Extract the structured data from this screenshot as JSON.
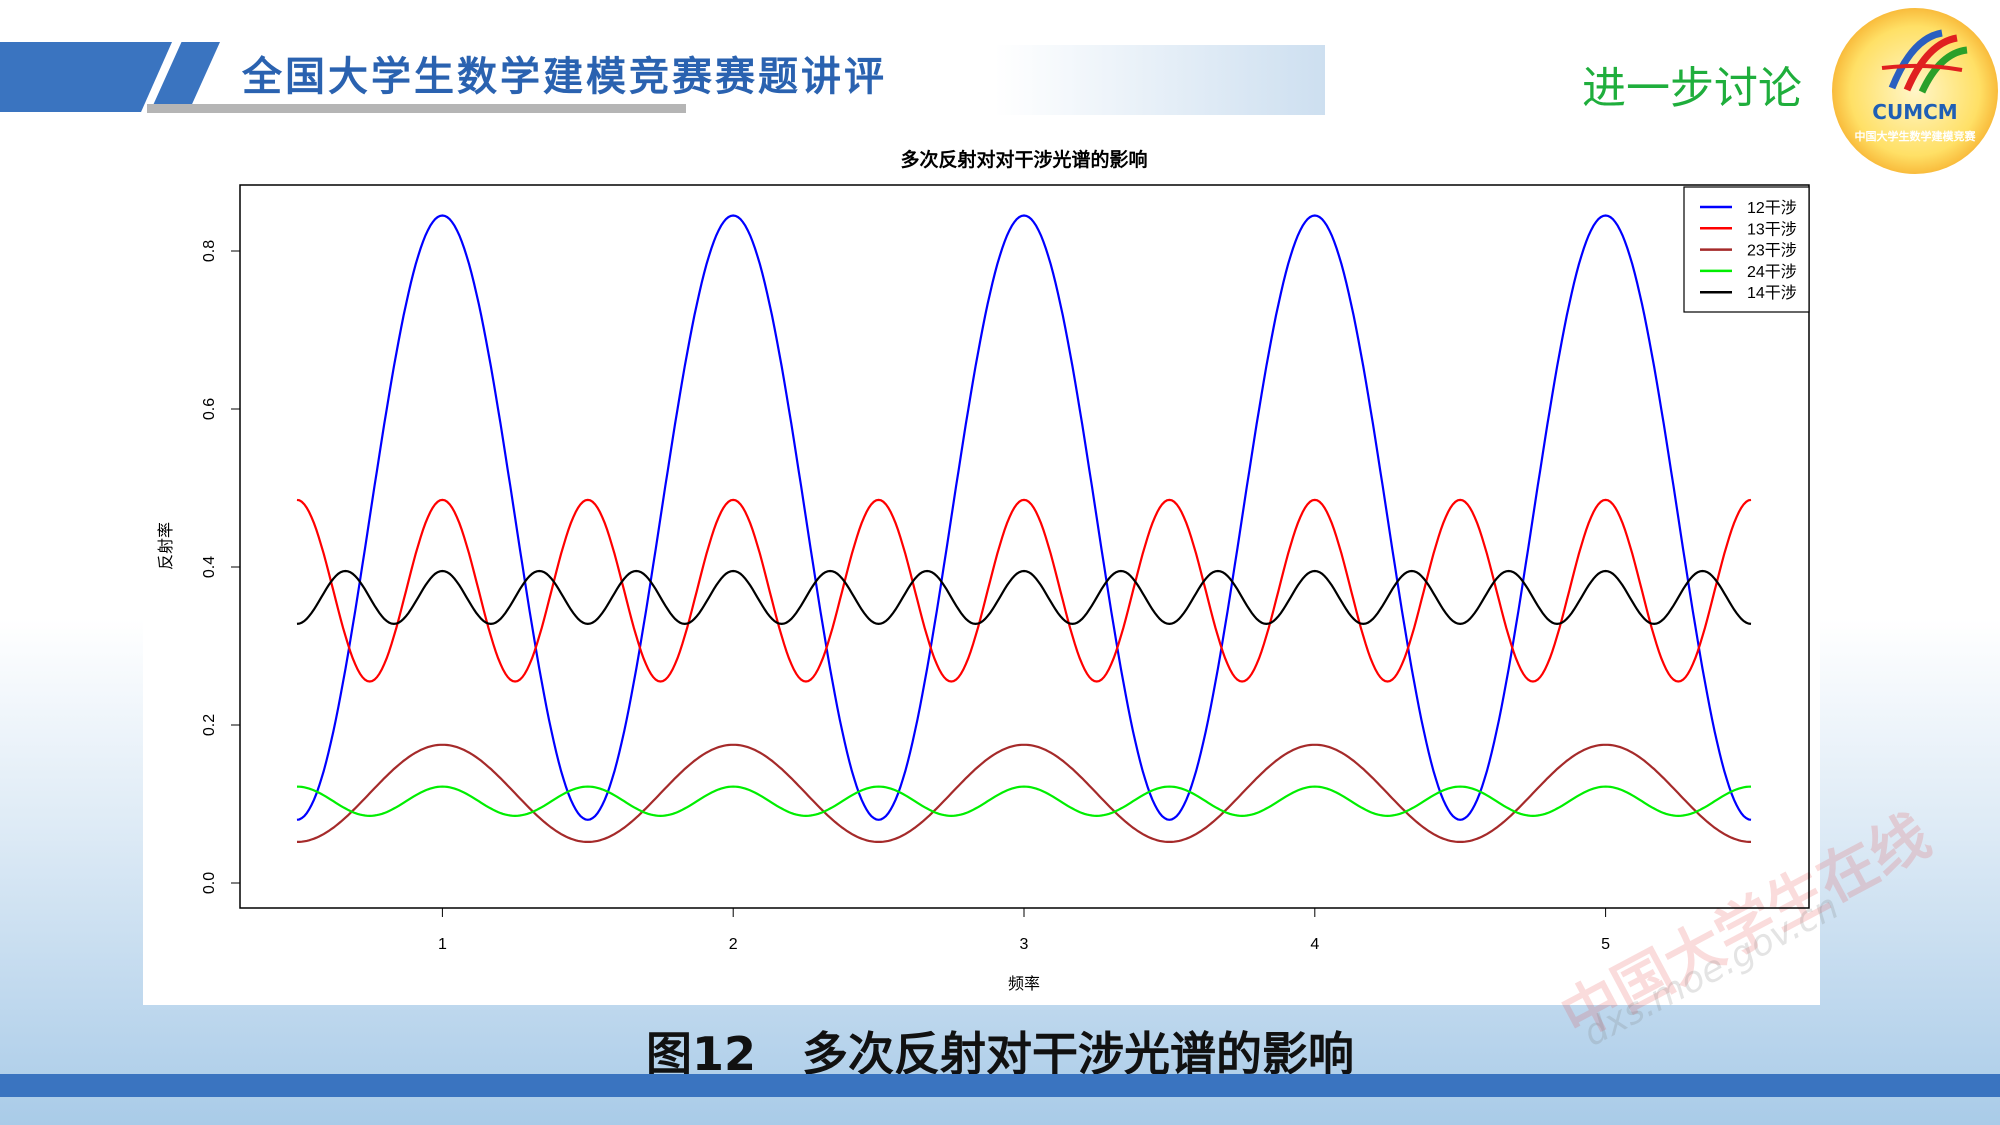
{
  "header": {
    "title": "全国大学生数学建模竞赛赛题讲评",
    "section": "进一步讨论"
  },
  "logo": {
    "text": "CUMCM",
    "subtitle": "中国大学生数学建模竞赛"
  },
  "caption": "图12　多次反射对干涉光谱的影响",
  "watermark": {
    "text": "中国大学生在线",
    "url": "dxs.moe.gov.cn"
  },
  "chart_data": {
    "type": "line",
    "title": "多次反射对对干涉光谱的影响",
    "xlabel": "频率",
    "ylabel": "反射率",
    "xlim": [
      0.5,
      5.5
    ],
    "ylim": [
      0.0,
      0.8
    ],
    "xticks": [
      "1",
      "2",
      "3",
      "4",
      "5"
    ],
    "yticks": [
      "0.0",
      "0.2",
      "0.4",
      "0.6",
      "0.8"
    ],
    "grid": false,
    "legend_position": "top-right",
    "series": [
      {
        "name": "12干涉",
        "color": "#0000ff",
        "form": "0.4625 + 0.3825*cos(2*pi*x)",
        "min": 0.08,
        "max": 0.845,
        "period": 1
      },
      {
        "name": "13干涉",
        "color": "#ff0000",
        "form": "0.37 + 0.115*cos(4*pi*x)",
        "min": 0.255,
        "max": 0.485,
        "period": 0.5
      },
      {
        "name": "23干涉",
        "color": "#a52a2a",
        "form": "0.1135 + 0.0615*cos(2*pi*x)",
        "min": 0.052,
        "max": 0.175,
        "period": 1
      },
      {
        "name": "24干涉",
        "color": "#00ee00",
        "form": "0.1035 + 0.0185*cos(4*pi*x)",
        "min": 0.085,
        "max": 0.122,
        "period": 0.5
      },
      {
        "name": "14干涉",
        "color": "#000000",
        "form": "0.3615 + 0.0335*cos(6*pi*x)",
        "min": 0.328,
        "max": 0.395,
        "period": 0.3333
      }
    ]
  }
}
